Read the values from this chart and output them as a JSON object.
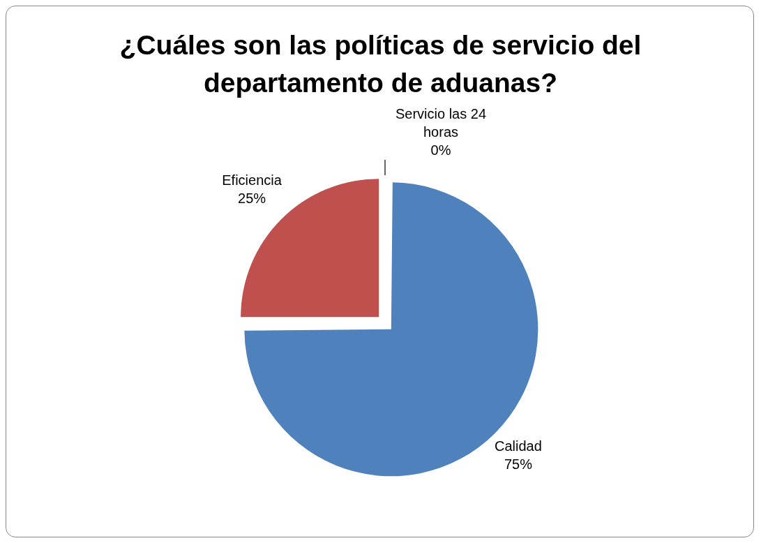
{
  "chart_data": {
    "type": "pie",
    "title": "¿Cuáles son las políticas de servicio del departamento de aduanas?",
    "categories": [
      "Calidad",
      "Eficiencia",
      "Servicio las 24 horas"
    ],
    "values": [
      75,
      25,
      0
    ],
    "colors": [
      "#4f81bd",
      "#c0504d",
      "#9bbb59"
    ],
    "value_labels": [
      "75%",
      "25%",
      "0%"
    ],
    "legend": false
  }
}
